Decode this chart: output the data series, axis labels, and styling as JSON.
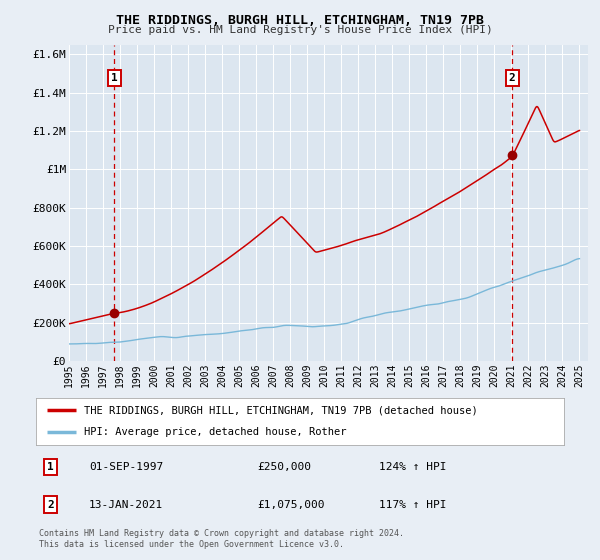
{
  "title": "THE RIDDINGS, BURGH HILL, ETCHINGHAM, TN19 7PB",
  "subtitle": "Price paid vs. HM Land Registry's House Price Index (HPI)",
  "bg_color": "#e8eef5",
  "plot_bg_color": "#dce6f0",
  "grid_color": "#ffffff",
  "red_line_color": "#cc0000",
  "blue_line_color": "#7ab8d9",
  "marker1_date": 1997.67,
  "marker1_value": 250000,
  "marker2_date": 2021.04,
  "marker2_value": 1075000,
  "vline1_x": 1997.67,
  "vline2_x": 2021.04,
  "legend_label_red": "THE RIDDINGS, BURGH HILL, ETCHINGHAM, TN19 7PB (detached house)",
  "legend_label_blue": "HPI: Average price, detached house, Rother",
  "table_row1": [
    "1",
    "01-SEP-1997",
    "£250,000",
    "124% ↑ HPI"
  ],
  "table_row2": [
    "2",
    "13-JAN-2021",
    "£1,075,000",
    "117% ↑ HPI"
  ],
  "footnote1": "Contains HM Land Registry data © Crown copyright and database right 2024.",
  "footnote2": "This data is licensed under the Open Government Licence v3.0.",
  "xlim": [
    1995.0,
    2025.5
  ],
  "ylim": [
    0,
    1650000
  ],
  "yticks": [
    0,
    200000,
    400000,
    600000,
    800000,
    1000000,
    1200000,
    1400000,
    1600000
  ],
  "ytick_labels": [
    "£0",
    "£200K",
    "£400K",
    "£600K",
    "£800K",
    "£1M",
    "£1.2M",
    "£1.4M",
    "£1.6M"
  ]
}
